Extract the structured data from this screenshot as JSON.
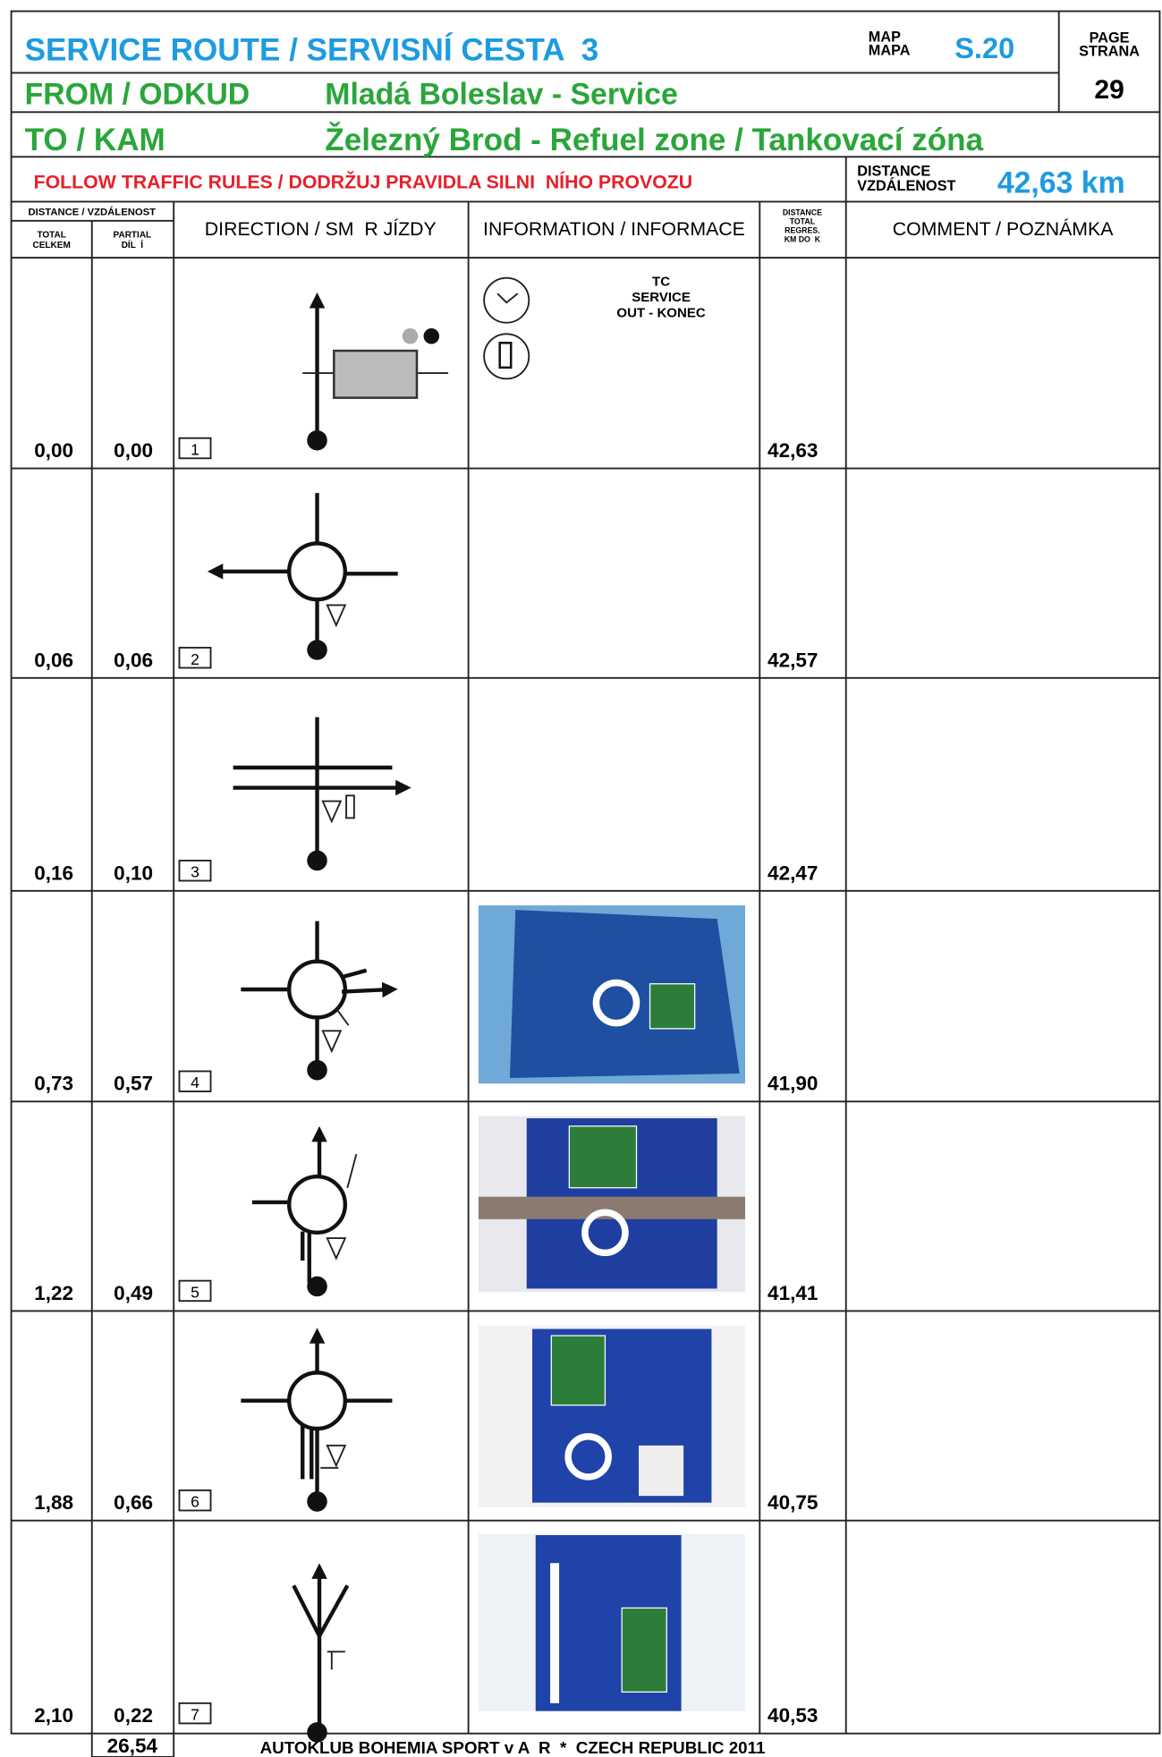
{
  "header": {
    "title": "SERVICE ROUTE / SERVISNÍ CESTA  3",
    "map_label": [
      "MAP",
      "MAPA"
    ],
    "map": "S.20",
    "page_label": [
      "PAGE",
      "STRANA"
    ],
    "page": "29",
    "from_label": "FROM / ODKUD",
    "from": "Mladá Boleslav - Service",
    "to_label": "TO / KAM",
    "to": "Železný Brod - Refuel zone / Tankovací zóna",
    "notice": "FOLLOW TRAFFIC RULES / DODRŽUJ PRAVIDLA SILNI  NÍHO PROVOZU",
    "distance_label": [
      "DISTANCE",
      "VZDÁLENOST"
    ],
    "distance": "42,63 km"
  },
  "columns": {
    "distance": "DISTANCE / VZDÁLENOST",
    "total": [
      "TOTAL",
      "CELKEM"
    ],
    "partial": [
      "PARTIAL",
      "DÍL  Í"
    ],
    "direction": "DIRECTION / SM  R JÍZDY",
    "information": "INFORMATION / INFORMACE",
    "remaining": [
      "DISTANCE",
      "TOTAL",
      "REGRES.",
      "KM DO  K"
    ],
    "comment": "COMMENT / POZNÁMKA"
  },
  "rows": [
    {
      "total": "0,00",
      "partial": "0,00",
      "number": "1",
      "remaining": "42,63",
      "info": [
        "TC",
        "SERVICE",
        "OUT - KONEC"
      ]
    },
    {
      "total": "0,06",
      "partial": "0,06",
      "number": "2",
      "remaining": "42,57"
    },
    {
      "total": "0,16",
      "partial": "0,10",
      "number": "3",
      "remaining": "42,47"
    },
    {
      "total": "0,73",
      "partial": "0,57",
      "number": "4",
      "remaining": "41,90"
    },
    {
      "total": "1,22",
      "partial": "0,49",
      "number": "5",
      "remaining": "41,41"
    },
    {
      "total": "1,88",
      "partial": "0,66",
      "number": "6",
      "remaining": "40,75"
    },
    {
      "total": "2,10",
      "partial": "0,22",
      "number": "7",
      "remaining": "40,53"
    }
  ],
  "footer": {
    "page_total": "26,54",
    "text": "AUTOKLUB BOHEMIA SPORT v A  R  *  CZECH REPUBLIC 2011"
  }
}
